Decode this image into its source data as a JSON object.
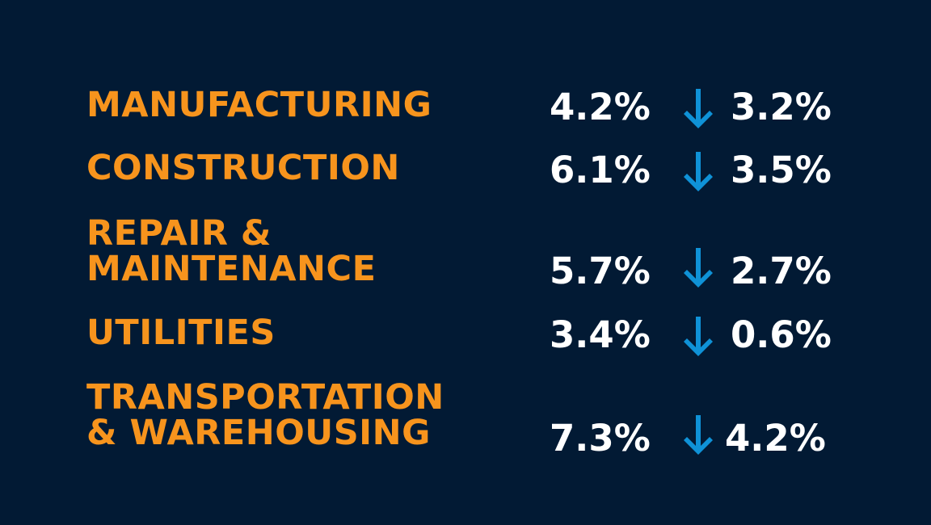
{
  "colors": {
    "background": "#021a34",
    "label": "#f7941d",
    "value": "#ffffff",
    "arrow": "#0f92d7"
  },
  "rows": [
    {
      "label_lines": [
        "MANUFACTURING"
      ],
      "from": "4.2%",
      "to": "3.2%",
      "trend_icon": "arrow-down-icon"
    },
    {
      "label_lines": [
        "CONSTRUCTION"
      ],
      "from": "6.1%",
      "to": "3.5%",
      "trend_icon": "arrow-down-icon"
    },
    {
      "label_lines": [
        "REPAIR &",
        "MAINTENANCE"
      ],
      "from": "5.7%",
      "to": "2.7%",
      "trend_icon": "arrow-down-icon"
    },
    {
      "label_lines": [
        "UTILITIES"
      ],
      "from": "3.4%",
      "to": "0.6%",
      "trend_icon": "arrow-down-icon"
    },
    {
      "label_lines": [
        "TRANSPORTATION",
        "& WAREHOUSING"
      ],
      "from": "7.3%",
      "to": "4.2%",
      "trend_icon": "arrow-down-icon"
    }
  ]
}
